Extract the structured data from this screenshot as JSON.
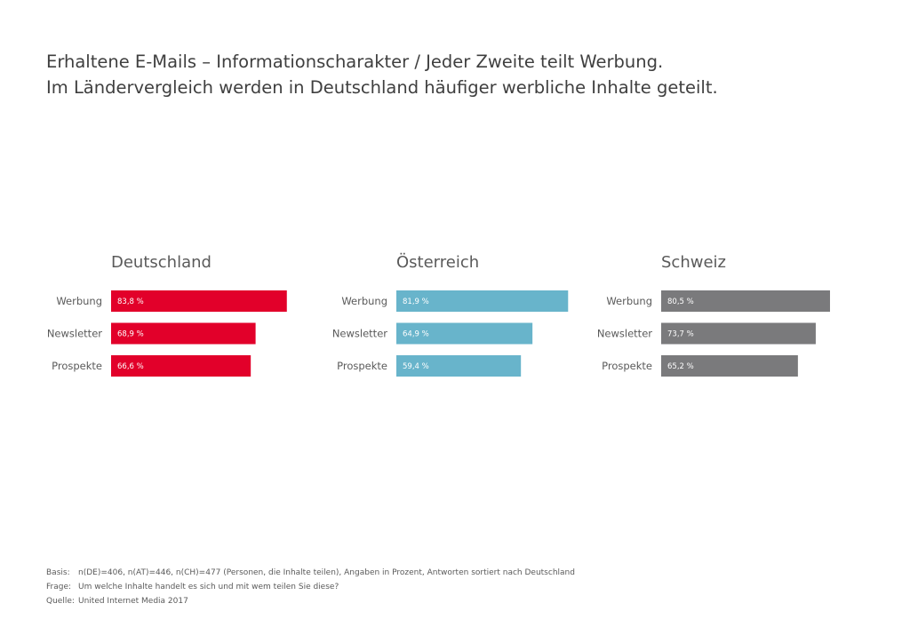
{
  "title": {
    "line1": "Erhaltene E-Mails – Informationscharakter / Jeder Zweite teilt Werbung.",
    "line2": "Im Ländervergleich werden in Deutschland häufiger werbliche Inhalte geteilt."
  },
  "chart_data": [
    {
      "type": "bar",
      "orientation": "horizontal",
      "title": "Deutschland",
      "categories": [
        "Werbung",
        "Newsletter",
        "Prospekte"
      ],
      "values": [
        83.8,
        68.9,
        66.6
      ],
      "value_labels": [
        "83,8 %",
        "68,9 %",
        "66,6 %"
      ],
      "color": "#e2002a"
    },
    {
      "type": "bar",
      "orientation": "horizontal",
      "title": "Österreich",
      "categories": [
        "Werbung",
        "Newsletter",
        "Prospekte"
      ],
      "values": [
        81.9,
        64.9,
        59.4
      ],
      "value_labels": [
        "81,9 %",
        "64,9 %",
        "59,4 %"
      ],
      "color": "#68b4cb"
    },
    {
      "type": "bar",
      "orientation": "horizontal",
      "title": "Schweiz",
      "categories": [
        "Werbung",
        "Newsletter",
        "Prospekte"
      ],
      "values": [
        80.5,
        73.7,
        65.2
      ],
      "value_labels": [
        "80,5 %",
        "73,7 %",
        "65,2 %"
      ],
      "color": "#7a7a7c"
    }
  ],
  "footer": {
    "basis_key": "Basis:",
    "basis_text": "n(DE)=406, n(AT)=446, n(CH)=477 (Personen, die Inhalte teilen), Angaben in Prozent, Antworten sortiert nach Deutschland",
    "frage_key": "Frage:",
    "frage_text": "Um welche Inhalte handelt es sich und mit wem teilen Sie diese?",
    "quelle_key": "Quelle:",
    "quelle_text": "United Internet Media 2017"
  }
}
